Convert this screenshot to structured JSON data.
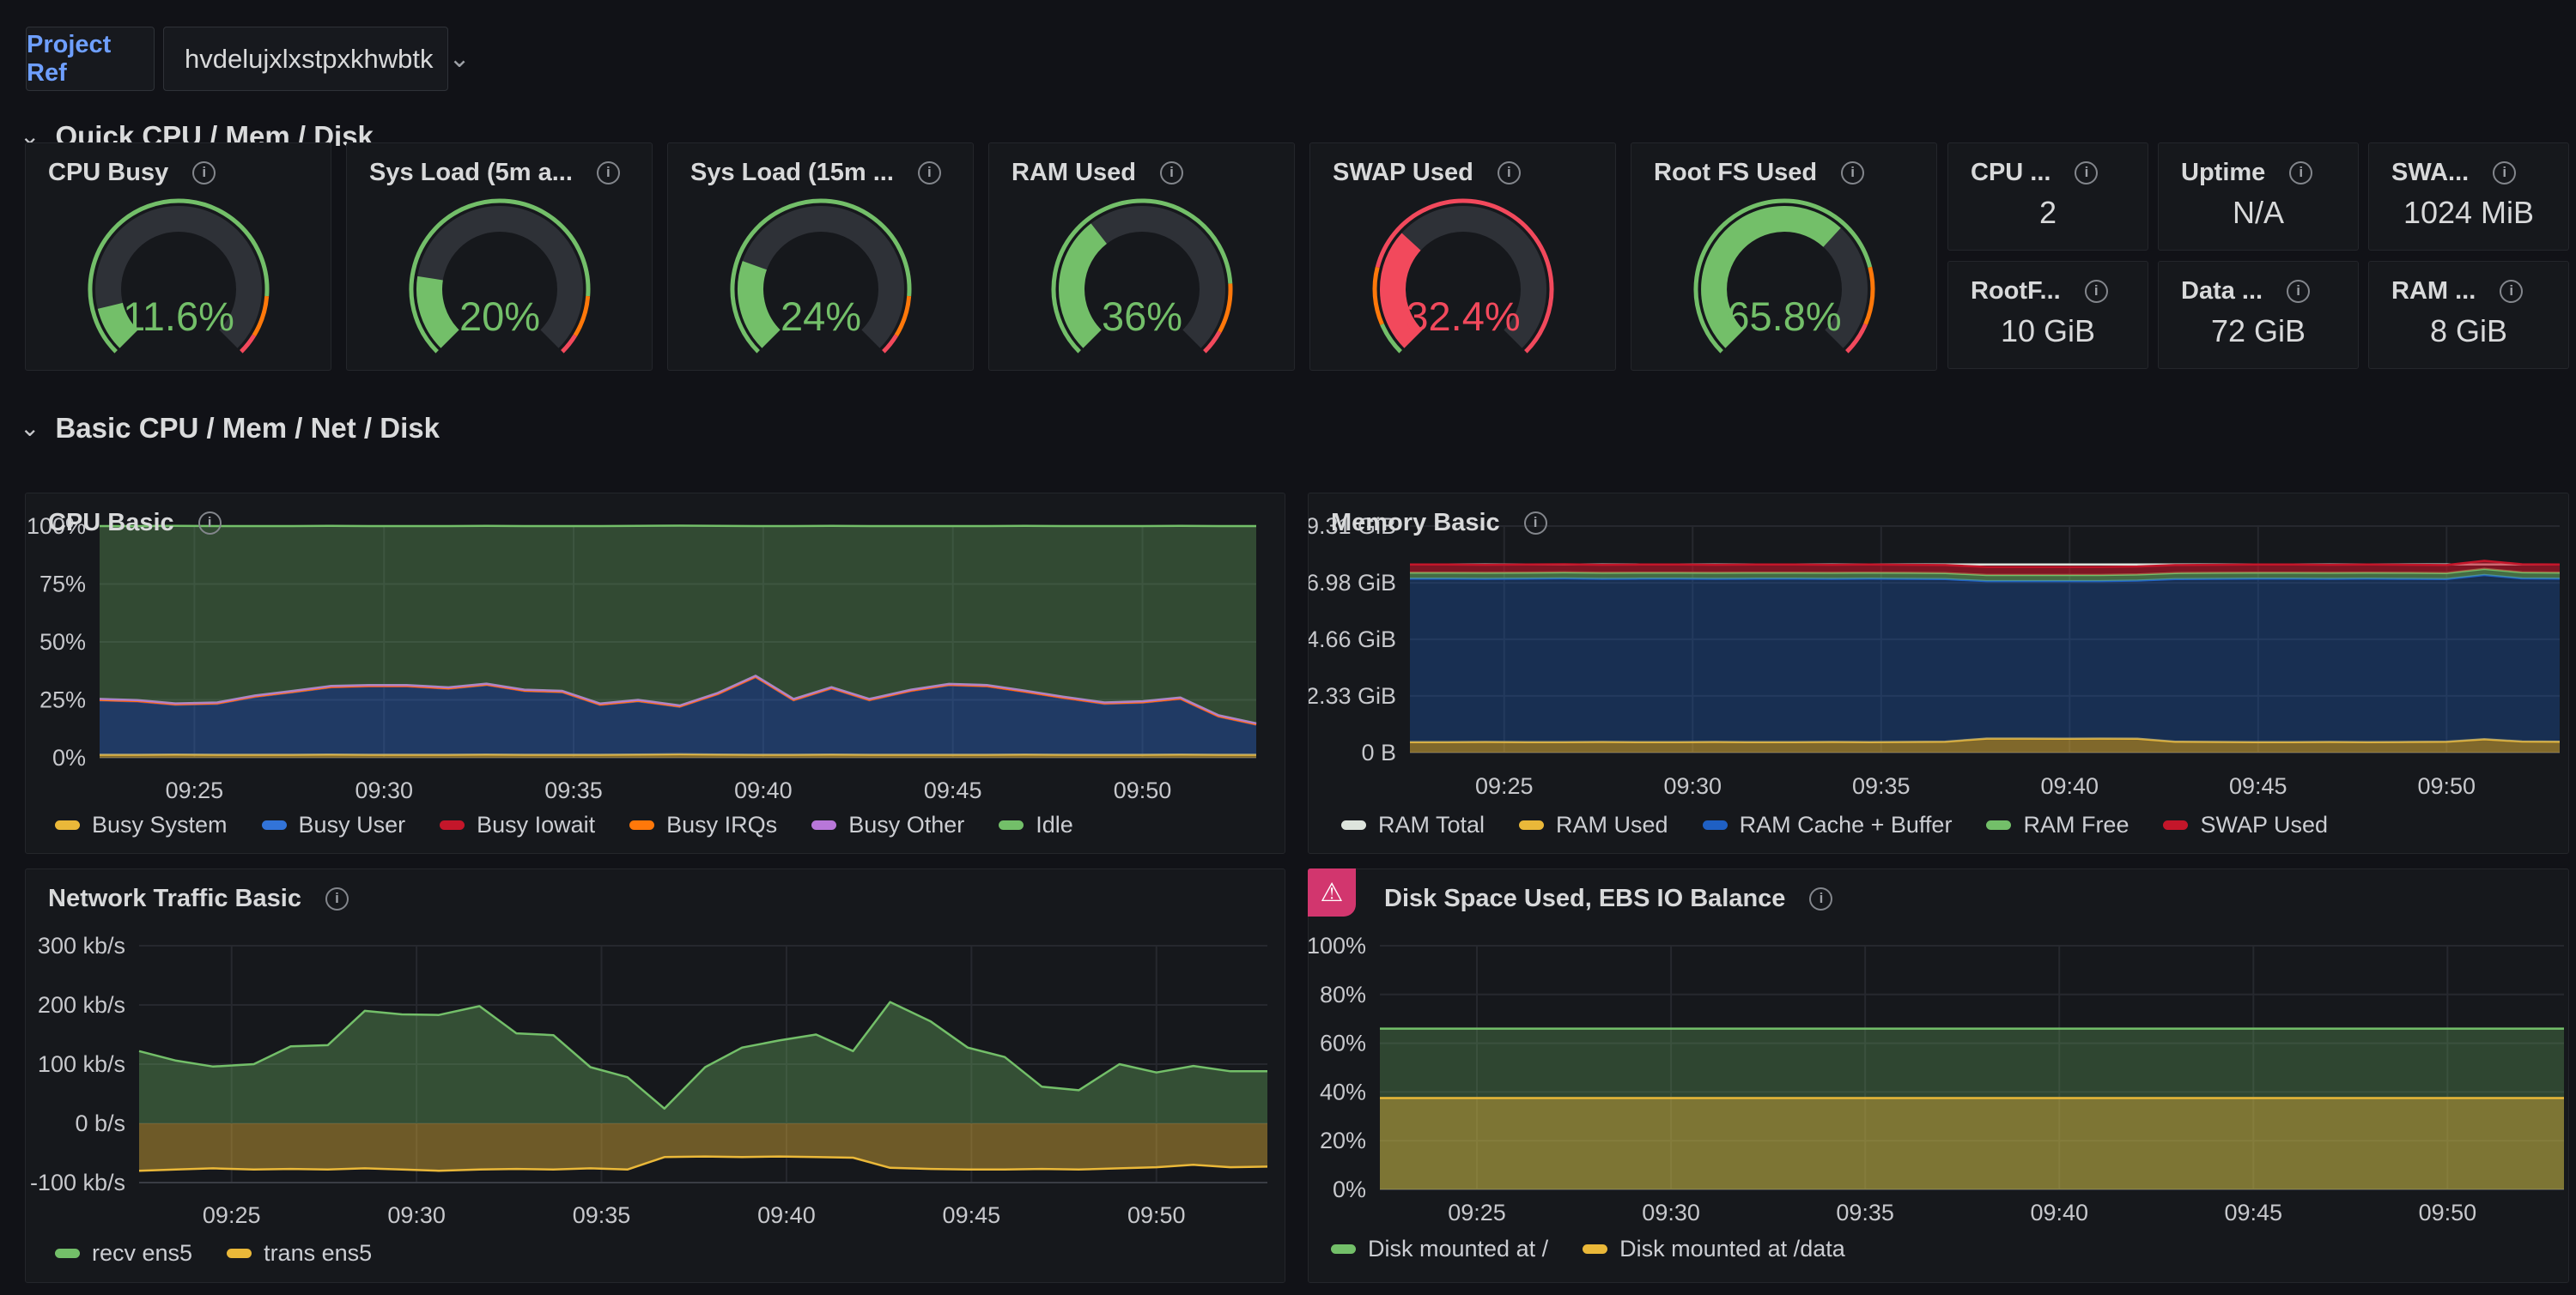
{
  "icons": {
    "info": "i",
    "warning": "⚠",
    "chevron_down": "⌄",
    "section_chevron": "⌄"
  },
  "colors": {
    "green": "#73BF69",
    "yellow": "#EAB839",
    "orange": "#FF780A",
    "red": "#F2495C",
    "dark_red": "#C4162A",
    "blue": "#3274D9",
    "dark_blue": "#1F60C4",
    "purple": "#B877D9",
    "alert_pink": "#D2366E",
    "panel_bg": "#16181C",
    "page_bg": "#111217"
  },
  "topbar": {
    "label": "Project Ref",
    "value": "hvdelujxlxstpxkhwbtk"
  },
  "sections": [
    {
      "title": "Quick CPU / Mem / Disk"
    },
    {
      "title": "Basic CPU / Mem / Net / Disk"
    }
  ],
  "gauges": [
    {
      "title": "CPU Busy",
      "value_text": "11.6%",
      "percent": 11.6,
      "color": "#73BF69",
      "thresholds": [
        {
          "color": "#73BF69",
          "from": 0,
          "to": 0.85
        },
        {
          "color": "#FF780A",
          "from": 0.85,
          "to": 0.95
        },
        {
          "color": "#F2495C",
          "from": 0.95,
          "to": 1
        }
      ]
    },
    {
      "title": "Sys Load (5m a...",
      "value_text": "20%",
      "percent": 20,
      "color": "#73BF69",
      "thresholds": [
        {
          "color": "#73BF69",
          "from": 0,
          "to": 0.85
        },
        {
          "color": "#FF780A",
          "from": 0.85,
          "to": 0.95
        },
        {
          "color": "#F2495C",
          "from": 0.95,
          "to": 1
        }
      ]
    },
    {
      "title": "Sys Load (15m ...",
      "value_text": "24%",
      "percent": 24,
      "color": "#73BF69",
      "thresholds": [
        {
          "color": "#73BF69",
          "from": 0,
          "to": 0.85
        },
        {
          "color": "#FF780A",
          "from": 0.85,
          "to": 0.95
        },
        {
          "color": "#F2495C",
          "from": 0.95,
          "to": 1
        }
      ]
    },
    {
      "title": "RAM Used",
      "value_text": "36%",
      "percent": 36,
      "color": "#73BF69",
      "thresholds": [
        {
          "color": "#73BF69",
          "from": 0,
          "to": 0.82
        },
        {
          "color": "#FF780A",
          "from": 0.82,
          "to": 0.94
        },
        {
          "color": "#F2495C",
          "from": 0.94,
          "to": 1
        }
      ]
    },
    {
      "title": "SWAP Used",
      "value_text": "32.4%",
      "percent": 32.4,
      "color": "#F2495C",
      "thresholds": [
        {
          "color": "#73BF69",
          "from": 0,
          "to": 0.08
        },
        {
          "color": "#FF780A",
          "from": 0.08,
          "to": 0.22
        },
        {
          "color": "#F2495C",
          "from": 0.22,
          "to": 1
        }
      ]
    },
    {
      "title": "Root FS Used",
      "value_text": "65.8%",
      "percent": 65.8,
      "color": "#73BF69",
      "thresholds": [
        {
          "color": "#73BF69",
          "from": 0,
          "to": 0.78
        },
        {
          "color": "#FF780A",
          "from": 0.78,
          "to": 0.92
        },
        {
          "color": "#F2495C",
          "from": 0.92,
          "to": 1
        }
      ]
    }
  ],
  "stats": [
    {
      "title": "CPU ...",
      "value": "2"
    },
    {
      "title": "Uptime",
      "value": "N/A"
    },
    {
      "title": "SWA...",
      "value": "1024 MiB"
    },
    {
      "title": "RootF...",
      "value": "10 GiB"
    },
    {
      "title": "Data ...",
      "value": "72 GiB"
    },
    {
      "title": "RAM ...",
      "value": "8 GiB"
    }
  ],
  "chart_data": [
    {
      "id": "cpu",
      "type": "area",
      "title": "CPU Basic",
      "stacked": true,
      "xlim": [
        22.5,
        53
      ],
      "ylim": [
        0,
        100
      ],
      "grid": true,
      "legend_position": "bottom",
      "x_ticks": {
        "values": [
          25,
          30,
          35,
          40,
          45,
          50
        ],
        "labels": [
          "09:25",
          "09:30",
          "09:35",
          "09:40",
          "09:45",
          "09:50"
        ]
      },
      "y_ticks": {
        "values": [
          0,
          25,
          50,
          75,
          100
        ],
        "labels": [
          "0%",
          "25%",
          "50%",
          "75%",
          "100%"
        ]
      },
      "x": [
        22.5,
        23.5,
        24.5,
        25.6,
        26.6,
        27.6,
        28.6,
        29.6,
        30.6,
        31.7,
        32.7,
        33.7,
        34.7,
        35.7,
        36.7,
        37.8,
        38.8,
        39.8,
        40.8,
        41.8,
        42.8,
        43.9,
        44.9,
        45.9,
        46.9,
        47.9,
        49,
        50,
        51,
        52,
        53
      ],
      "series": [
        {
          "name": "Busy System",
          "color": "#EAB839",
          "mode": "stack",
          "fill_opacity": 0.5,
          "values": [
            1.3,
            1.3,
            1.4,
            1.3,
            1.3,
            1.3,
            1.4,
            1.3,
            1.3,
            1.3,
            1.4,
            1.3,
            1.3,
            1.3,
            1.4,
            1.5,
            1.4,
            1.3,
            1.3,
            1.4,
            1.3,
            1.3,
            1.3,
            1.3,
            1.4,
            1.3,
            1.3,
            1.3,
            1.4,
            1.3,
            1.3
          ]
        },
        {
          "name": "Busy User",
          "color": "#3274D9",
          "mode": "stack",
          "fill_opacity": 0.38,
          "values": [
            23.5,
            23,
            21.5,
            22,
            25,
            27,
            29,
            29.5,
            29.5,
            28.5,
            30,
            27.5,
            27,
            21.5,
            23,
            20.5,
            26,
            33.5,
            23.5,
            28.5,
            23.5,
            27.5,
            30,
            29.5,
            27,
            24.5,
            22,
            22.5,
            24,
            16.5,
            13
          ]
        },
        {
          "name": "Busy Iowait",
          "color": "#C4162A",
          "mode": "stack",
          "fill_opacity": 0.5,
          "values": 0.1
        },
        {
          "name": "Busy IRQs",
          "color": "#FF780A",
          "mode": "stack",
          "fill_opacity": 0.5,
          "values": 0.1
        },
        {
          "name": "Busy Other",
          "color": "#B877D9",
          "mode": "stack",
          "fill_opacity": 0.5,
          "values": 0.4
        },
        {
          "name": "Idle",
          "color": "#73BF69",
          "mode": "stack",
          "fill_opacity": 0.3,
          "values": [
            74.6,
            75.1,
            76.6,
            76.1,
            73.1,
            71.1,
            69.1,
            68.6,
            68.6,
            69.6,
            68.1,
            70.6,
            71.1,
            76.6,
            75.1,
            77.6,
            72.1,
            64.6,
            74.6,
            69.6,
            74.6,
            70.6,
            68.1,
            68.6,
            71.1,
            73.6,
            76.1,
            75.6,
            74.1,
            81.6,
            85.1
          ]
        }
      ]
    },
    {
      "id": "mem",
      "type": "area",
      "title": "Memory Basic",
      "stacked": true,
      "xlim": [
        22.5,
        53
      ],
      "ylim": [
        0,
        9.31
      ],
      "grid": true,
      "legend_position": "bottom",
      "x_ticks": {
        "values": [
          25,
          30,
          35,
          40,
          45,
          50
        ],
        "labels": [
          "09:25",
          "09:30",
          "09:35",
          "09:40",
          "09:45",
          "09:50"
        ]
      },
      "y_ticks": {
        "values": [
          0,
          2.33,
          4.66,
          6.98,
          9.31
        ],
        "labels": [
          "0 B",
          "2.33 GiB",
          "4.66 GiB",
          "6.98 GiB",
          "9.31 GiB"
        ]
      },
      "x": [
        22.5,
        23.5,
        24.5,
        25.6,
        26.6,
        27.6,
        28.6,
        29.6,
        30.6,
        31.7,
        32.7,
        33.7,
        34.7,
        35.7,
        36.7,
        37.8,
        38.8,
        39.8,
        40.8,
        41.8,
        42.8,
        43.9,
        44.9,
        45.9,
        46.9,
        47.9,
        49,
        50,
        51,
        52,
        53
      ],
      "series": [
        {
          "name": "RAM Total",
          "color": "#DDE4DD",
          "mode": "line",
          "fill_opacity": 0,
          "values": 7.73
        },
        {
          "name": "RAM Used",
          "color": "#EAB839",
          "mode": "stack",
          "fill_opacity": 0.5,
          "values": [
            0.43,
            0.43,
            0.44,
            0.43,
            0.43,
            0.44,
            0.43,
            0.43,
            0.44,
            0.43,
            0.43,
            0.44,
            0.43,
            0.44,
            0.45,
            0.58,
            0.58,
            0.57,
            0.58,
            0.57,
            0.45,
            0.44,
            0.43,
            0.43,
            0.44,
            0.43,
            0.44,
            0.45,
            0.55,
            0.46,
            0.45
          ]
        },
        {
          "name": "RAM Cache + Buffer",
          "color": "#1F60C4",
          "mode": "stack",
          "fill_opacity": 0.32,
          "values": [
            6.72,
            6.72,
            6.7,
            6.72,
            6.73,
            6.7,
            6.72,
            6.72,
            6.7,
            6.72,
            6.72,
            6.7,
            6.72,
            6.7,
            6.68,
            6.47,
            6.47,
            6.48,
            6.47,
            6.5,
            6.68,
            6.7,
            6.72,
            6.72,
            6.7,
            6.72,
            6.7,
            6.68,
            6.75,
            6.7,
            6.7
          ]
        },
        {
          "name": "RAM Free",
          "color": "#73BF69",
          "mode": "stack",
          "fill_opacity": 0.5,
          "values": 0.25
        },
        {
          "name": "SWAP Used",
          "color": "#C4162A",
          "mode": "stack",
          "fill_opacity": 0.6,
          "values": 0.33
        }
      ]
    },
    {
      "id": "net",
      "type": "area",
      "title": "Network Traffic Basic",
      "stacked": false,
      "xlim": [
        22.5,
        53
      ],
      "ylim": [
        -100,
        300
      ],
      "grid": true,
      "legend_position": "bottom",
      "x_ticks": {
        "values": [
          25,
          30,
          35,
          40,
          45,
          50
        ],
        "labels": [
          "09:25",
          "09:30",
          "09:35",
          "09:40",
          "09:45",
          "09:50"
        ]
      },
      "y_ticks": {
        "values": [
          -100,
          0,
          100,
          200,
          300
        ],
        "labels": [
          "-100 kb/s",
          "0 b/s",
          "100 kb/s",
          "200 kb/s",
          "300 kb/s"
        ]
      },
      "x": [
        22.5,
        23.5,
        24.5,
        25.6,
        26.6,
        27.6,
        28.6,
        29.6,
        30.6,
        31.7,
        32.7,
        33.7,
        34.7,
        35.7,
        36.7,
        37.8,
        38.8,
        39.8,
        40.8,
        41.8,
        42.8,
        43.9,
        44.9,
        45.9,
        46.9,
        47.9,
        49,
        50,
        51,
        52,
        53
      ],
      "series": [
        {
          "name": "recv ens5",
          "color": "#73BF69",
          "mode": "area",
          "fill_opacity": 0.33,
          "values": [
            122,
            106,
            96,
            100,
            130,
            132,
            190,
            184,
            183,
            198,
            152,
            149,
            95,
            78,
            25,
            95,
            128,
            140,
            150,
            122,
            205,
            172,
            128,
            112,
            62,
            56,
            100,
            86,
            97,
            88,
            88
          ]
        },
        {
          "name": "trans ens5",
          "color": "#EAB839",
          "mode": "area",
          "fill_opacity": 0.42,
          "values": [
            -80,
            -78,
            -76,
            -78,
            -77,
            -78,
            -76,
            -78,
            -80,
            -78,
            -77,
            -78,
            -76,
            -78,
            -57,
            -56,
            -57,
            -56,
            -57,
            -58,
            -75,
            -77,
            -78,
            -78,
            -77,
            -78,
            -76,
            -74,
            -70,
            -74,
            -73
          ]
        }
      ]
    },
    {
      "id": "disk",
      "type": "area",
      "title": "Disk Space Used, EBS IO Balance",
      "stacked": false,
      "alert": true,
      "xlim": [
        22.5,
        53
      ],
      "ylim": [
        0,
        100
      ],
      "grid": true,
      "legend_position": "bottom",
      "x_ticks": {
        "values": [
          25,
          30,
          35,
          40,
          45,
          50
        ],
        "labels": [
          "09:25",
          "09:30",
          "09:35",
          "09:40",
          "09:45",
          "09:50"
        ]
      },
      "y_ticks": {
        "values": [
          0,
          20,
          40,
          60,
          80,
          100
        ],
        "labels": [
          "0%",
          "20%",
          "40%",
          "60%",
          "80%",
          "100%"
        ]
      },
      "x": [
        22.5,
        53
      ],
      "series": [
        {
          "name": "Disk mounted at /",
          "color": "#73BF69",
          "mode": "area",
          "fill_opacity": 0.28,
          "values": 66
        },
        {
          "name": "Disk mounted at /data",
          "color": "#EAB839",
          "mode": "area",
          "fill_opacity": 0.42,
          "values": 37.5
        }
      ]
    }
  ]
}
